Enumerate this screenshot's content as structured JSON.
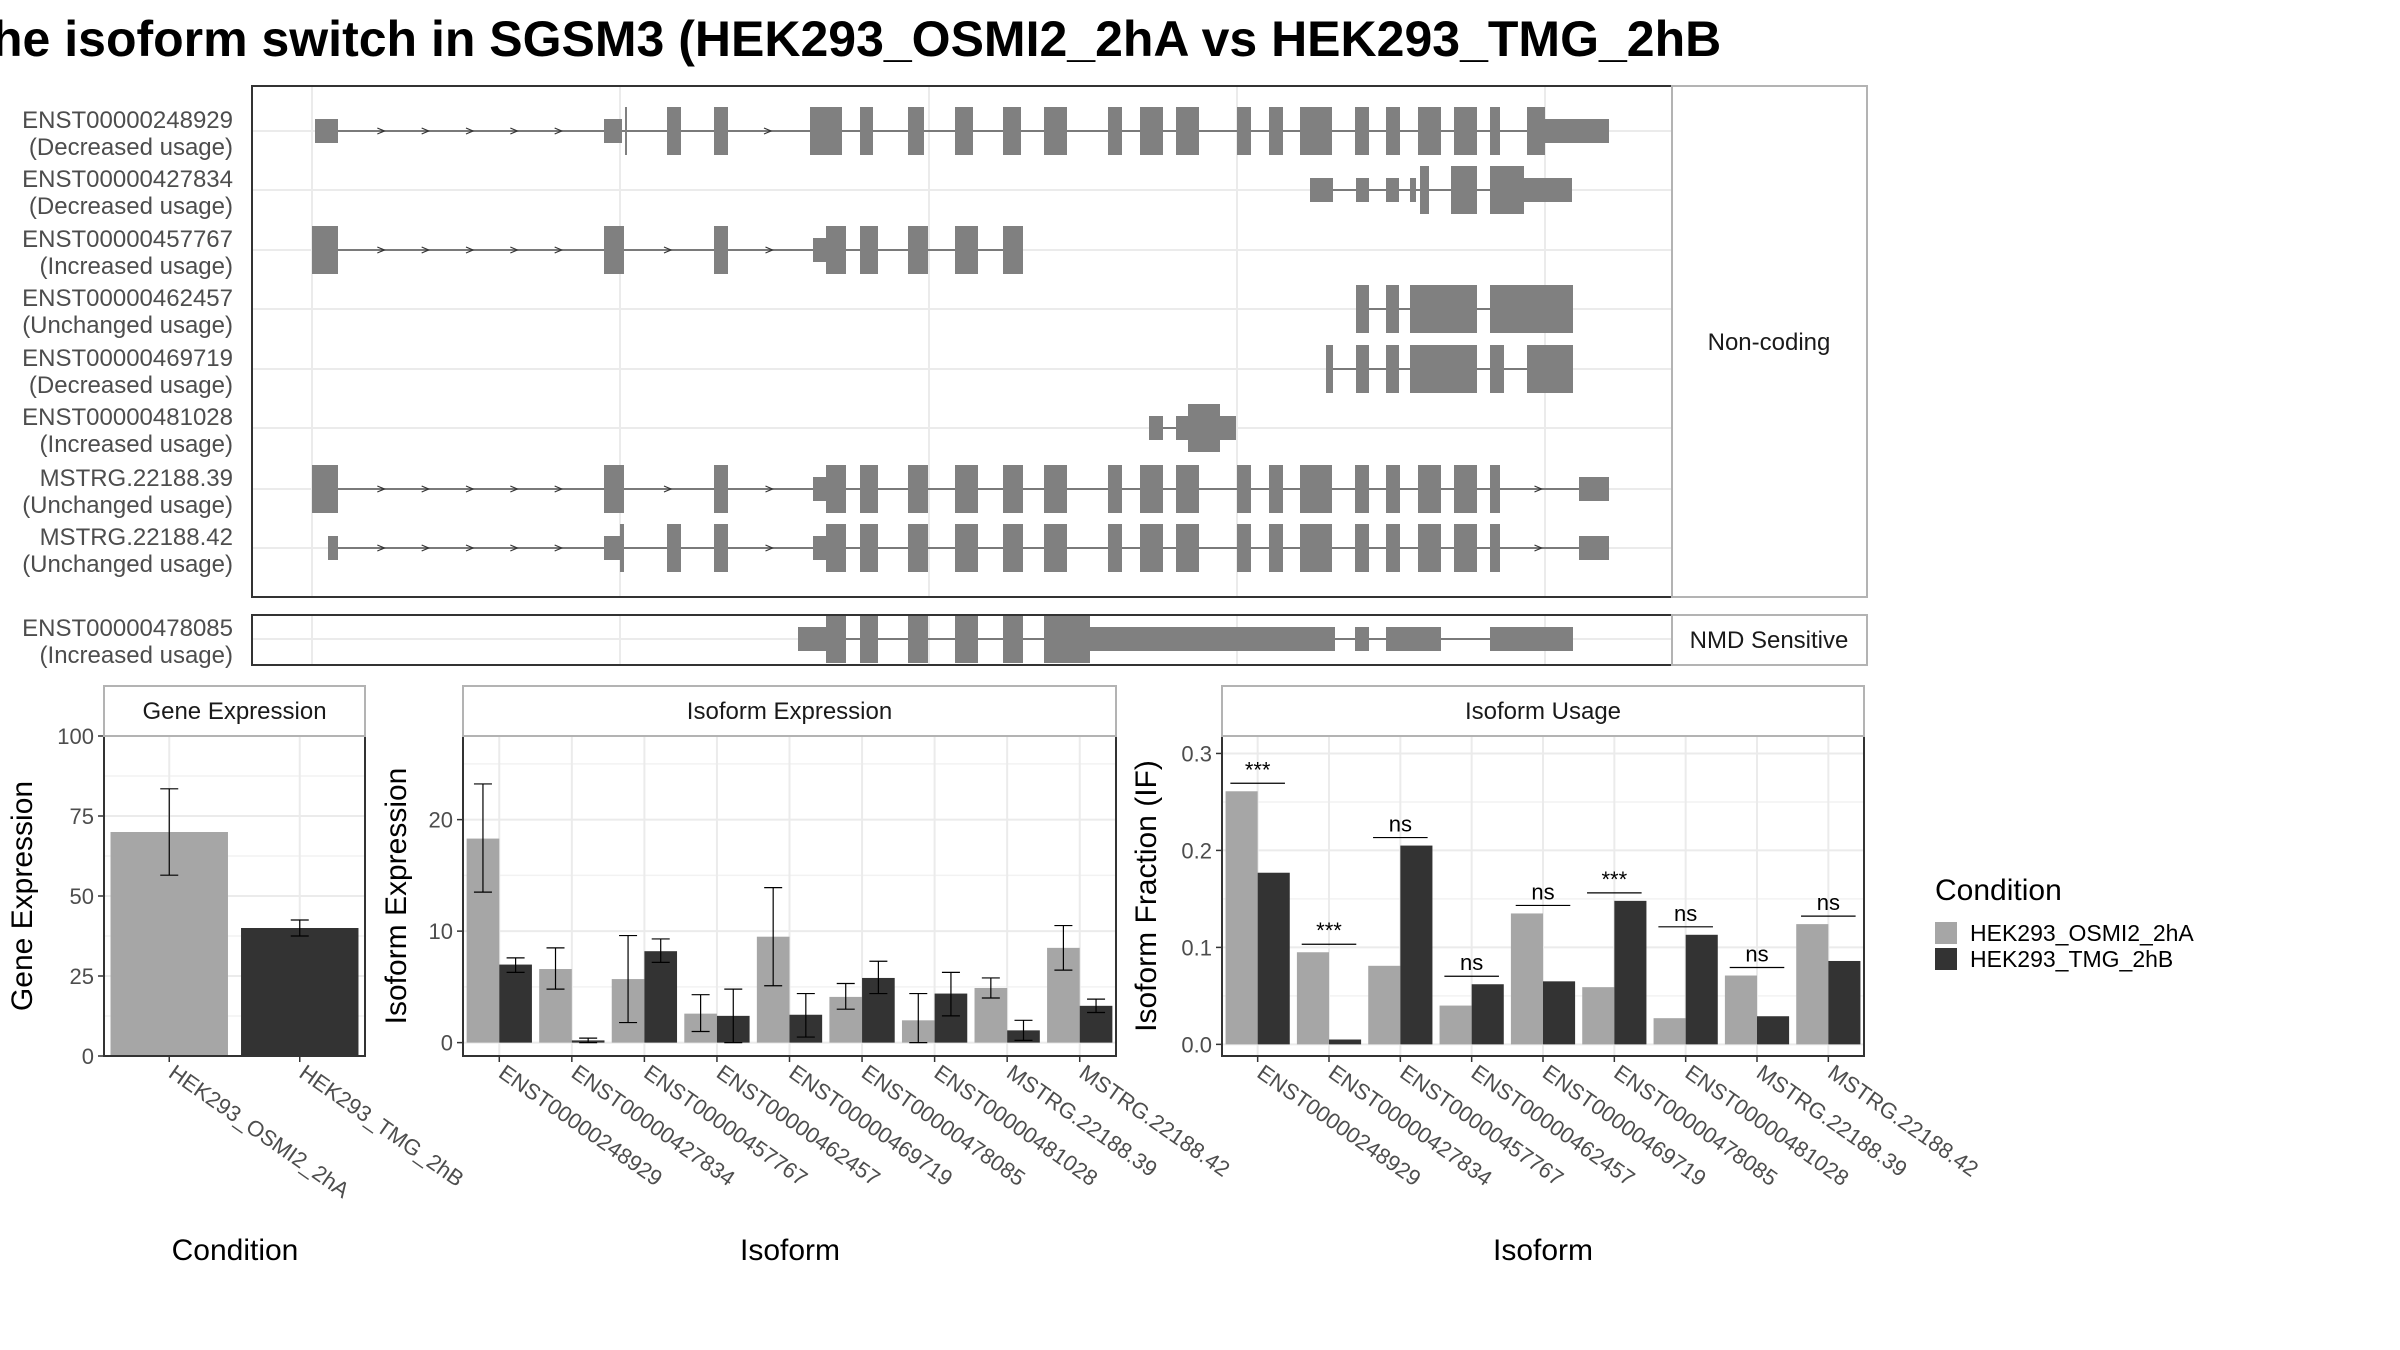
{
  "title": "he isoform switch in SGSM3 (HEK293_OSMI2_2hA vs HEK293_TMG_2hB",
  "colors": {
    "exon": "#808080",
    "condA": "#a6a6a6",
    "condB": "#333333",
    "grid": "#ebebeb",
    "panel_border": "#333333",
    "strip_border": "#b3b3b3"
  },
  "structure": {
    "facets": [
      {
        "label": "Non-coding",
        "isoforms": [
          {
            "id": "ENST00000248929",
            "status": "(Decreased usage)"
          },
          {
            "id": "ENST00000427834",
            "status": "(Decreased usage)"
          },
          {
            "id": "ENST00000457767",
            "status": "(Increased usage)"
          },
          {
            "id": "ENST00000462457",
            "status": "(Unchanged usage)"
          },
          {
            "id": "ENST00000469719",
            "status": "(Decreased usage)"
          },
          {
            "id": "ENST00000481028",
            "status": "(Increased usage)"
          },
          {
            "id": "MSTRG.22188.39",
            "status": "(Unchanged usage)"
          },
          {
            "id": "MSTRG.22188.42",
            "status": "(Unchanged usage)"
          }
        ]
      },
      {
        "label": "NMD Sensitive",
        "isoforms": [
          {
            "id": "ENST00000478085",
            "status": "(Increased usage)"
          }
        ]
      }
    ]
  },
  "chart_data": [
    {
      "type": "bar",
      "title": "Gene Expression",
      "xlabel": "Condition",
      "ylabel": "Gene Expression",
      "categories": [
        "HEK293_OSMI2_2hA",
        "HEK293_TMG_2hB"
      ],
      "values": [
        70,
        40
      ],
      "error": [
        [
          56.5,
          83.5
        ],
        [
          37.5,
          42.5
        ]
      ],
      "ylim": [
        0,
        100
      ],
      "yticks": [
        "0",
        "25",
        "50",
        "75",
        "100"
      ]
    },
    {
      "type": "bar",
      "title": "Isoform Expression",
      "xlabel": "Isoform",
      "ylabel": "Isoform Expression",
      "categories": [
        "ENST00000248929",
        "ENST00000427834",
        "ENST00000457767",
        "ENST00000462457",
        "ENST00000469719",
        "ENST00000478085",
        "ENST00000481028",
        "MSTRG.22188.39",
        "MSTRG.22188.42"
      ],
      "series": [
        {
          "name": "HEK293_OSMI2_2hA",
          "values": [
            18.3,
            6.6,
            5.7,
            2.6,
            9.5,
            4.1,
            2.0,
            4.9,
            8.5
          ],
          "error": [
            [
              13.5,
              23.2
            ],
            [
              4.8,
              8.5
            ],
            [
              1.8,
              9.6
            ],
            [
              1.0,
              4.3
            ],
            [
              5.1,
              13.9
            ],
            [
              3.0,
              5.3
            ],
            [
              0.0,
              4.4
            ],
            [
              4.0,
              5.8
            ],
            [
              6.5,
              10.5
            ]
          ]
        },
        {
          "name": "HEK293_TMG_2hB",
          "values": [
            7.0,
            0.2,
            8.2,
            2.4,
            2.5,
            5.8,
            4.4,
            1.1,
            3.3
          ],
          "error": [
            [
              6.3,
              7.6
            ],
            [
              0.0,
              0.4
            ],
            [
              7.2,
              9.3
            ],
            [
              0.0,
              4.8
            ],
            [
              0.5,
              4.4
            ],
            [
              4.4,
              7.3
            ],
            [
              2.4,
              6.3
            ],
            [
              0.2,
              2.0
            ],
            [
              2.7,
              3.9
            ]
          ]
        }
      ],
      "ylim": [
        -1.2,
        27.5
      ],
      "yticks": [
        "0",
        "10",
        "20"
      ]
    },
    {
      "type": "bar",
      "title": "Isoform Usage",
      "xlabel": "Isoform",
      "ylabel": "Isoform Fraction (IF)",
      "categories": [
        "ENST00000248929",
        "ENST00000427834",
        "ENST00000457767",
        "ENST00000462457",
        "ENST00000469719",
        "ENST00000478085",
        "ENST00000481028",
        "MSTRG.22188.39",
        "MSTRG.22188.42"
      ],
      "series": [
        {
          "name": "HEK293_OSMI2_2hA",
          "values": [
            0.261,
            0.095,
            0.081,
            0.04,
            0.135,
            0.059,
            0.027,
            0.071,
            0.124
          ]
        },
        {
          "name": "HEK293_TMG_2hB",
          "values": [
            0.177,
            0.005,
            0.205,
            0.062,
            0.065,
            0.148,
            0.113,
            0.029,
            0.086
          ]
        }
      ],
      "significance": [
        "***",
        "***",
        "ns",
        "ns",
        "ns",
        "***",
        "ns",
        "ns",
        "ns"
      ],
      "ylim": [
        -0.012,
        0.318
      ],
      "yticks": [
        "0.0",
        "0.1",
        "0.2",
        "0.3"
      ]
    }
  ],
  "legend": {
    "title": "Condition",
    "items": [
      "HEK293_OSMI2_2hA",
      "HEK293_TMG_2hB"
    ]
  }
}
